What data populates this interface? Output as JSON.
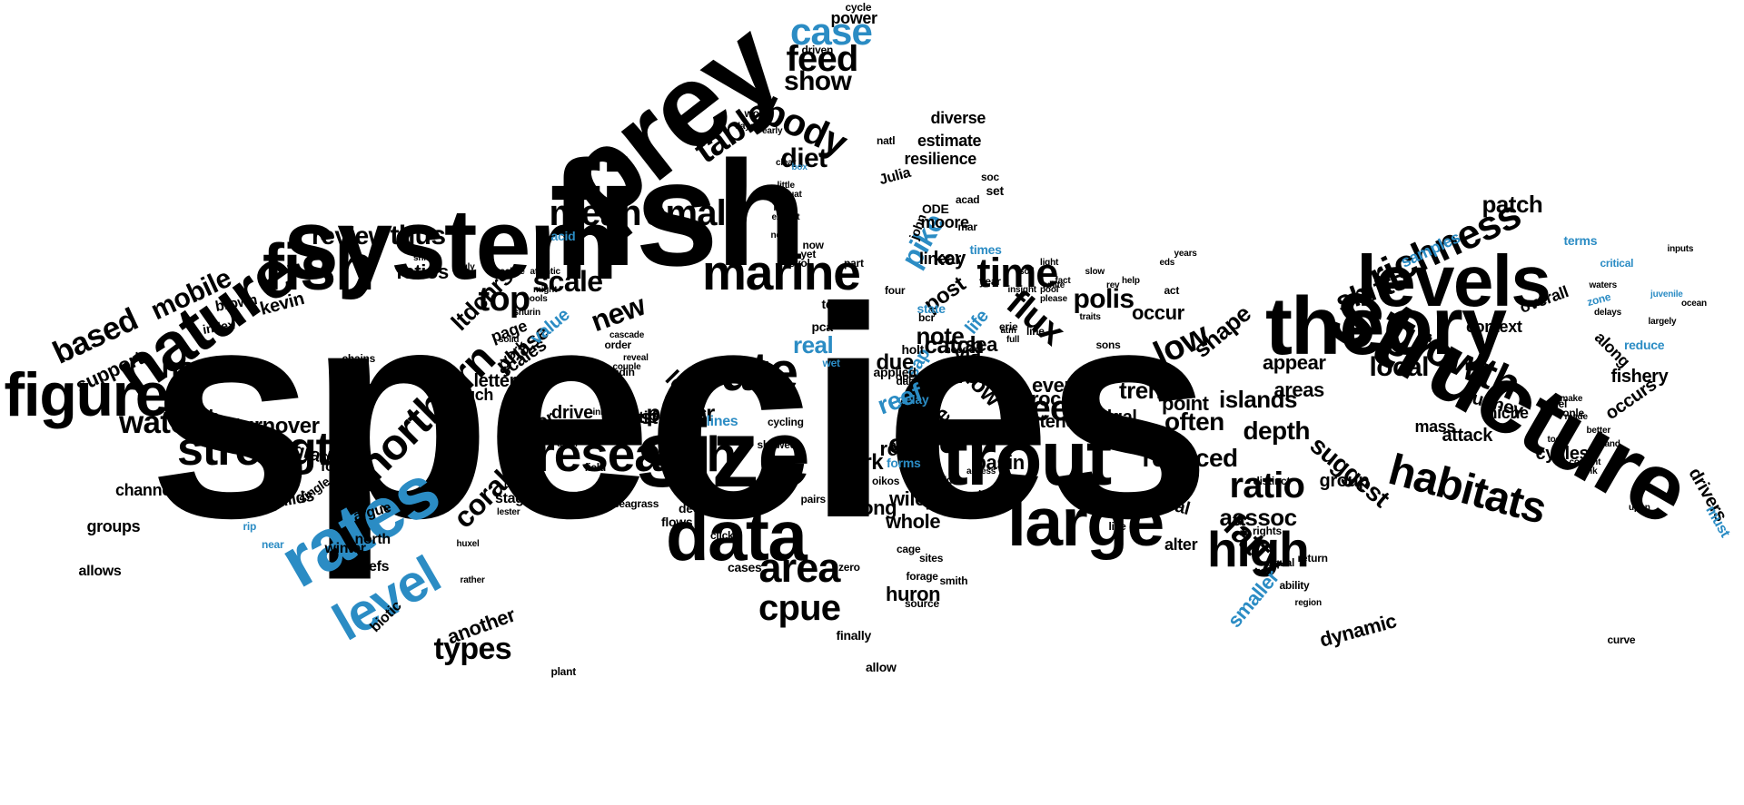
{
  "colors": {
    "primary": "#000000",
    "accent": "#2b8cc4",
    "background": "#ffffff"
  },
  "words": [
    {
      "text": "species",
      "color": "primary"
    },
    {
      "text": "fish",
      "color": "primary"
    },
    {
      "text": "system",
      "color": "primary"
    },
    {
      "text": "prey",
      "color": "primary"
    },
    {
      "text": "structure",
      "color": "primary"
    },
    {
      "text": "theory",
      "color": "primary"
    },
    {
      "text": "size",
      "color": "primary"
    },
    {
      "text": "data",
      "color": "primary"
    },
    {
      "text": "trout",
      "color": "primary"
    },
    {
      "text": "large",
      "color": "primary"
    },
    {
      "text": "levels",
      "color": "primary"
    },
    {
      "text": "nature",
      "color": "primary"
    },
    {
      "text": "fish",
      "color": "primary"
    },
    {
      "text": "figure",
      "color": "primary"
    },
    {
      "text": "rates",
      "color": "accent"
    },
    {
      "text": "level",
      "color": "accent"
    },
    {
      "text": "marine",
      "color": "primary"
    },
    {
      "text": "rate",
      "color": "primary"
    },
    {
      "text": "research",
      "color": "primary"
    },
    {
      "text": "strength",
      "color": "primary"
    },
    {
      "text": "growth",
      "color": "primary"
    },
    {
      "text": "habitats",
      "color": "primary"
    },
    {
      "text": "richness",
      "color": "primary"
    },
    {
      "text": "case",
      "color": "accent"
    },
    {
      "text": "feed",
      "color": "primary"
    },
    {
      "text": "show",
      "color": "primary"
    },
    {
      "text": "table",
      "color": "primary"
    },
    {
      "text": "body",
      "color": "primary"
    },
    {
      "text": "diet",
      "color": "primary"
    },
    {
      "text": "mean",
      "color": "primary"
    },
    {
      "text": "small",
      "color": "primary"
    },
    {
      "text": "time",
      "color": "primary"
    },
    {
      "text": "top",
      "color": "primary"
    },
    {
      "text": "scale",
      "color": "primary"
    },
    {
      "text": "new",
      "color": "primary"
    },
    {
      "text": "northern",
      "color": "primary"
    },
    {
      "text": "area",
      "color": "primary"
    },
    {
      "text": "cpue",
      "color": "primary"
    },
    {
      "text": "high",
      "color": "primary"
    },
    {
      "text": "ratio",
      "color": "primary"
    },
    {
      "text": "fatty",
      "color": "primary"
    },
    {
      "text": "see",
      "color": "primary"
    },
    {
      "text": "water",
      "color": "primary"
    },
    {
      "text": "host",
      "color": "primary"
    },
    {
      "text": "based",
      "color": "primary"
    },
    {
      "text": "mobile",
      "color": "primary"
    },
    {
      "text": "thus",
      "color": "primary"
    },
    {
      "text": "review",
      "color": "primary"
    },
    {
      "text": "pike",
      "color": "accent"
    },
    {
      "text": "flux",
      "color": "primary"
    },
    {
      "text": "low",
      "color": "primary"
    },
    {
      "text": "polis",
      "color": "primary"
    },
    {
      "text": "shifts",
      "color": "primary"
    },
    {
      "text": "patch",
      "color": "primary"
    },
    {
      "text": "samples",
      "color": "accent"
    },
    {
      "text": "local",
      "color": "primary"
    },
    {
      "text": "cisco",
      "color": "primary"
    },
    {
      "text": "real",
      "color": "accent"
    },
    {
      "text": "reef",
      "color": "accent"
    },
    {
      "text": "catch",
      "color": "primary"
    },
    {
      "text": "trends",
      "color": "primary"
    },
    {
      "text": "often",
      "color": "primary"
    },
    {
      "text": "depth",
      "color": "primary"
    },
    {
      "text": "acids",
      "color": "primary"
    },
    {
      "text": "reduced",
      "color": "primary"
    },
    {
      "text": "aassoc",
      "color": "primary"
    },
    {
      "text": "smaller",
      "color": "accent"
    },
    {
      "text": "dynamic",
      "color": "primary"
    },
    {
      "text": "suggest",
      "color": "primary"
    },
    {
      "text": "islands",
      "color": "primary"
    },
    {
      "text": "coral",
      "color": "primary"
    },
    {
      "text": "types",
      "color": "primary"
    },
    {
      "text": "another",
      "color": "primary"
    },
    {
      "text": "loss",
      "color": "primary"
    },
    {
      "text": "river",
      "color": "primary"
    },
    {
      "text": "press",
      "color": "primary"
    },
    {
      "text": "test",
      "color": "primary"
    },
    {
      "text": "doi",
      "color": "primary"
    },
    {
      "text": "work",
      "color": "primary"
    },
    {
      "text": "long",
      "color": "primary"
    },
    {
      "text": "wiley",
      "color": "primary"
    },
    {
      "text": "whole",
      "color": "primary"
    },
    {
      "text": "huron",
      "color": "primary"
    },
    {
      "text": "flow",
      "color": "primary"
    },
    {
      "text": "type",
      "color": "primary"
    },
    {
      "text": "recent",
      "color": "primary"
    },
    {
      "text": "basin",
      "color": "primary"
    },
    {
      "text": "role",
      "color": "primary"
    },
    {
      "text": "note",
      "color": "primary"
    },
    {
      "text": "due",
      "color": "primary"
    },
    {
      "text": "post",
      "color": "primary"
    },
    {
      "text": "key",
      "color": "primary"
    },
    {
      "text": "life",
      "color": "accent"
    },
    {
      "text": "sap",
      "color": "accent"
    },
    {
      "text": "via",
      "color": "primary"
    },
    {
      "text": "sea",
      "color": "primary"
    },
    {
      "text": "shape",
      "color": "primary"
    },
    {
      "text": "occur",
      "color": "primary"
    },
    {
      "text": "appear",
      "color": "primary"
    },
    {
      "text": "areas",
      "color": "primary"
    },
    {
      "text": "proc",
      "color": "primary"
    },
    {
      "text": "even",
      "color": "primary"
    },
    {
      "text": "point",
      "color": "primary"
    },
    {
      "text": "group",
      "color": "primary"
    },
    {
      "text": "tend",
      "color": "primary"
    },
    {
      "text": "algal",
      "color": "primary"
    },
    {
      "text": "shows",
      "color": "primary"
    },
    {
      "text": "basal",
      "color": "primary"
    },
    {
      "text": "alter",
      "color": "primary"
    },
    {
      "text": "attack",
      "color": "primary"
    },
    {
      "text": "tunney",
      "color": "primary"
    },
    {
      "text": "cycles",
      "color": "primary"
    },
    {
      "text": "mass",
      "color": "primary"
    },
    {
      "text": "drivers",
      "color": "primary"
    },
    {
      "text": "fishery",
      "color": "primary"
    },
    {
      "text": "occurs",
      "color": "primary"
    },
    {
      "text": "overall",
      "color": "primary"
    },
    {
      "text": "context",
      "color": "primary"
    },
    {
      "text": "along",
      "color": "primary"
    },
    {
      "text": "niche",
      "color": "primary"
    },
    {
      "text": "ltdcnrs",
      "color": "primary"
    },
    {
      "text": "ratios",
      "color": "primary"
    },
    {
      "text": "phase",
      "color": "primary"
    },
    {
      "text": "scales",
      "color": "primary"
    },
    {
      "text": "page",
      "color": "primary"
    },
    {
      "text": "york",
      "color": "primary"
    },
    {
      "text": "value",
      "color": "accent"
    },
    {
      "text": "letters",
      "color": "primary"
    },
    {
      "text": "much",
      "color": "primary"
    },
    {
      "text": "major",
      "color": "primary"
    },
    {
      "text": "arctic",
      "color": "primary"
    },
    {
      "text": "drive",
      "color": "primary"
    },
    {
      "text": "sizes",
      "color": "primary"
    },
    {
      "text": "stage",
      "color": "primary"
    },
    {
      "text": "support",
      "color": "primary"
    },
    {
      "text": "perch",
      "color": "primary"
    },
    {
      "text": "turnover",
      "color": "primary"
    },
    {
      "text": "gradient",
      "color": "primary"
    },
    {
      "text": "guilds",
      "color": "primary"
    },
    {
      "text": "single",
      "color": "primary"
    },
    {
      "text": "form",
      "color": "primary"
    },
    {
      "text": "channel",
      "color": "primary"
    },
    {
      "text": "groups",
      "color": "primary"
    },
    {
      "text": "allows",
      "color": "primary"
    },
    {
      "text": "argue",
      "color": "primary"
    },
    {
      "text": "north",
      "color": "primary"
    },
    {
      "text": "winter",
      "color": "primary"
    },
    {
      "text": "reefs",
      "color": "primary"
    },
    {
      "text": "biotic",
      "color": "primary"
    },
    {
      "text": "plant",
      "color": "primary"
    },
    {
      "text": "allow",
      "color": "primary"
    },
    {
      "text": "finally",
      "color": "primary"
    },
    {
      "text": "kevin",
      "color": "primary"
    },
    {
      "text": "brown",
      "color": "primary"
    },
    {
      "text": "index",
      "color": "primary"
    },
    {
      "text": "chains",
      "color": "primary"
    },
    {
      "text": "power",
      "color": "primary"
    },
    {
      "text": "driven",
      "color": "primary"
    },
    {
      "text": "estimate",
      "color": "primary"
    },
    {
      "text": "diverse",
      "color": "primary"
    },
    {
      "text": "resilience",
      "color": "primary"
    },
    {
      "text": "moore",
      "color": "primary"
    },
    {
      "text": "Julia",
      "color": "primary"
    },
    {
      "text": "linear",
      "color": "primary"
    },
    {
      "text": "john",
      "color": "primary"
    },
    {
      "text": "state",
      "color": "accent"
    },
    {
      "text": "ODE",
      "color": "primary"
    },
    {
      "text": "times",
      "color": "accent"
    },
    {
      "text": "lines",
      "color": "accent"
    },
    {
      "text": "acid",
      "color": "accent"
    },
    {
      "text": "must",
      "color": "accent"
    },
    {
      "text": "zone",
      "color": "accent"
    },
    {
      "text": "terms",
      "color": "accent"
    },
    {
      "text": "critical",
      "color": "accent"
    },
    {
      "text": "juvenile",
      "color": "accent"
    },
    {
      "text": "reduce",
      "color": "accent"
    },
    {
      "text": "delay",
      "color": "accent"
    },
    {
      "text": "forms",
      "color": "accent"
    },
    {
      "text": "author",
      "color": "primary"
    },
    {
      "text": "applied",
      "color": "primary"
    },
    {
      "text": "needed",
      "color": "primary"
    },
    {
      "text": "holt",
      "color": "primary"
    },
    {
      "text": "set",
      "color": "primary"
    },
    {
      "text": "mar",
      "color": "primary"
    },
    {
      "text": "acad",
      "color": "primary"
    },
    {
      "text": "soc",
      "color": "primary"
    },
    {
      "text": "natl",
      "color": "primary"
    },
    {
      "text": "cycle",
      "color": "primary"
    },
    {
      "text": "world",
      "color": "primary"
    },
    {
      "text": "days",
      "color": "primary"
    },
    {
      "text": "early",
      "color": "primary"
    },
    {
      "text": "order",
      "color": "primary"
    },
    {
      "text": "pools",
      "color": "primary"
    },
    {
      "text": "sandin",
      "color": "primary"
    },
    {
      "text": "decline",
      "color": "primary"
    },
    {
      "text": "click",
      "color": "primary"
    },
    {
      "text": "field",
      "color": "primary"
    },
    {
      "text": "seagrass",
      "color": "primary"
    },
    {
      "text": "flows",
      "color": "primary"
    },
    {
      "text": "cases",
      "color": "primary"
    },
    {
      "text": "zero",
      "color": "primary"
    },
    {
      "text": "cage",
      "color": "primary"
    },
    {
      "text": "sites",
      "color": "primary"
    },
    {
      "text": "forage",
      "color": "primary"
    },
    {
      "text": "smith",
      "color": "primary"
    },
    {
      "text": "source",
      "color": "primary"
    },
    {
      "text": "least",
      "color": "primary"
    },
    {
      "text": "unit",
      "color": "primary"
    },
    {
      "text": "figs",
      "color": "primary"
    },
    {
      "text": "access",
      "color": "primary"
    },
    {
      "text": "oikos",
      "color": "primary"
    },
    {
      "text": "pairs",
      "color": "primary"
    },
    {
      "text": "year",
      "color": "primary"
    },
    {
      "text": "tests",
      "color": "primary"
    },
    {
      "text": "pca",
      "color": "primary"
    },
    {
      "text": "bcr",
      "color": "primary"
    },
    {
      "text": "erie",
      "color": "primary"
    },
    {
      "text": "line",
      "color": "primary"
    },
    {
      "text": "open",
      "color": "primary"
    },
    {
      "text": "dai",
      "color": "primary"
    },
    {
      "text": "act",
      "color": "primary"
    },
    {
      "text": "rev",
      "color": "primary"
    },
    {
      "text": "sons",
      "color": "primary"
    },
    {
      "text": "text",
      "color": "primary"
    },
    {
      "text": "like",
      "color": "primary"
    },
    {
      "text": "way",
      "color": "primary"
    },
    {
      "text": "exist",
      "color": "primary"
    },
    {
      "text": "rights",
      "color": "primary"
    },
    {
      "text": "equal",
      "color": "primary"
    },
    {
      "text": "distinct",
      "color": "primary"
    },
    {
      "text": "ability",
      "color": "primary"
    },
    {
      "text": "return",
      "color": "primary"
    },
    {
      "text": "region",
      "color": "primary"
    },
    {
      "text": "curve",
      "color": "primary"
    },
    {
      "text": "tonle",
      "color": "primary"
    },
    {
      "text": "panel",
      "color": "primary"
    },
    {
      "text": "made",
      "color": "primary"
    },
    {
      "text": "make",
      "color": "primary"
    },
    {
      "text": "better",
      "color": "primary"
    },
    {
      "text": "tools",
      "color": "primary"
    },
    {
      "text": "pool",
      "color": "primary"
    },
    {
      "text": "fact",
      "color": "primary"
    },
    {
      "text": "white",
      "color": "primary"
    },
    {
      "text": "please",
      "color": "primary"
    },
    {
      "text": "atm",
      "color": "primary"
    },
    {
      "text": "full",
      "color": "primary"
    },
    {
      "text": "traits",
      "color": "primary"
    },
    {
      "text": "insight",
      "color": "primary"
    },
    {
      "text": "soil",
      "color": "primary"
    },
    {
      "text": "light",
      "color": "primary"
    },
    {
      "text": "slow",
      "color": "primary"
    },
    {
      "text": "help",
      "color": "primary"
    },
    {
      "text": "eds",
      "color": "primary"
    },
    {
      "text": "years",
      "color": "primary"
    },
    {
      "text": "waters",
      "color": "primary"
    },
    {
      "text": "delays",
      "color": "primary"
    },
    {
      "text": "inputs",
      "color": "primary"
    },
    {
      "text": "ocean",
      "color": "primary"
    },
    {
      "text": "largely",
      "color": "primary"
    },
    {
      "text": "island",
      "color": "primary"
    },
    {
      "text": "content",
      "color": "primary"
    },
    {
      "text": "link",
      "color": "primary"
    },
    {
      "text": "upon",
      "color": "primary"
    },
    {
      "text": "now",
      "color": "primary"
    },
    {
      "text": "yet",
      "color": "primary"
    },
    {
      "text": "part",
      "color": "primary"
    },
    {
      "text": "four",
      "color": "primary"
    },
    {
      "text": "able",
      "color": "primary"
    },
    {
      "text": "evol",
      "color": "primary"
    },
    {
      "text": "clear",
      "color": "primary"
    },
    {
      "text": "little",
      "color": "primary"
    },
    {
      "text": "aquat",
      "color": "primary"
    },
    {
      "text": "bay",
      "color": "primary"
    },
    {
      "text": "box",
      "color": "accent"
    },
    {
      "text": "plos",
      "color": "primary"
    },
    {
      "text": "exhibit",
      "color": "primary"
    },
    {
      "text": "need",
      "color": "primary"
    },
    {
      "text": "shift",
      "color": "primary"
    },
    {
      "text": "pauly",
      "color": "primary"
    },
    {
      "text": "atlantic",
      "color": "primary"
    },
    {
      "text": "isocline",
      "color": "primary"
    },
    {
      "text": "might",
      "color": "primary"
    },
    {
      "text": "shurin",
      "color": "primary"
    },
    {
      "text": "solid",
      "color": "primary"
    },
    {
      "text": "cascade",
      "color": "primary"
    },
    {
      "text": "reveal",
      "color": "primary"
    },
    {
      "text": "couple",
      "color": "primary"
    },
    {
      "text": "direct",
      "color": "primary"
    },
    {
      "text": "initial",
      "color": "primary"
    },
    {
      "text": "fixed",
      "color": "primary"
    },
    {
      "text": "differ",
      "color": "primary"
    },
    {
      "text": "inland",
      "color": "primary"
    },
    {
      "text": "bsm",
      "color": "primary"
    },
    {
      "text": "lester",
      "color": "primary"
    },
    {
      "text": "huxel",
      "color": "primary"
    },
    {
      "text": "rather",
      "color": "primary"
    },
    {
      "text": "cycling",
      "color": "primary"
    },
    {
      "text": "showed",
      "color": "primary"
    },
    {
      "text": "wet",
      "color": "accent"
    },
    {
      "text": "rip",
      "color": "accent"
    },
    {
      "text": "near",
      "color": "accent"
    }
  ]
}
